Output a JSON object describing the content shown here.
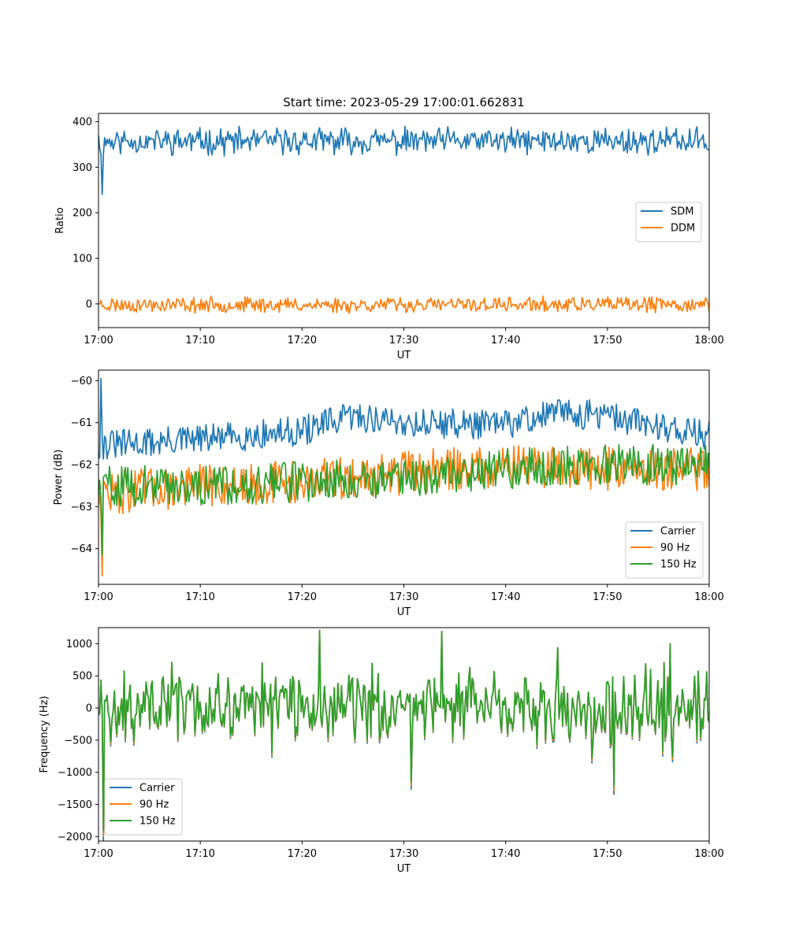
{
  "chart_data": [
    {
      "type": "line",
      "title": "Start time: 2023-05-29 17:00:01.662831",
      "xlabel": "UT",
      "ylabel": "Ratio",
      "xlim": [
        "17:00",
        "18:00"
      ],
      "ylim": [
        -52,
        418
      ],
      "xticks": [
        "17:00",
        "17:10",
        "17:20",
        "17:30",
        "17:40",
        "17:50",
        "18:00"
      ],
      "yticks": [
        400,
        300,
        200,
        100,
        0
      ],
      "legend": "center-right",
      "grid": false,
      "series": [
        {
          "name": "SDM",
          "color": "#1f77b4",
          "kind": "noise",
          "start": 370,
          "dip": {
            "x": "17:00:20",
            "y": 240
          },
          "center": 357,
          "amplitude": 38,
          "seed": 11
        },
        {
          "name": "DDM",
          "color": "#ff7f0e",
          "kind": "noise",
          "start": 0,
          "center": -2,
          "amplitude": 22,
          "seed": 23
        }
      ]
    },
    {
      "type": "line",
      "title": "",
      "xlabel": "UT",
      "ylabel": "Power (dB)",
      "xlim": [
        "17:00",
        "18:00"
      ],
      "ylim": [
        -64.85,
        -59.75
      ],
      "xticks": [
        "17:00",
        "17:10",
        "17:20",
        "17:30",
        "17:40",
        "17:50",
        "18:00"
      ],
      "yticks": [
        -60,
        -61,
        -62,
        -63,
        -64
      ],
      "legend": "lower-right",
      "grid": false,
      "series": [
        {
          "name": "Carrier",
          "color": "#1f77b4",
          "kind": "trend",
          "trend": [
            [
              "17:00",
              -61.55
            ],
            [
              "17:10",
              -61.4
            ],
            [
              "17:20",
              -61.2
            ],
            [
              "17:25",
              -60.85
            ],
            [
              "17:30",
              -61.0
            ],
            [
              "17:40",
              -61.05
            ],
            [
              "17:45",
              -60.75
            ],
            [
              "17:50",
              -60.85
            ],
            [
              "18:00",
              -61.3
            ]
          ],
          "amplitude": 0.55,
          "seed": 31
        },
        {
          "name": "90 Hz",
          "color": "#ff7f0e",
          "kind": "trend",
          "trend": [
            [
              "17:00",
              -62.7
            ],
            [
              "17:10",
              -62.5
            ],
            [
              "17:20",
              -62.4
            ],
            [
              "17:30",
              -62.2
            ],
            [
              "17:40",
              -62.0
            ],
            [
              "17:50",
              -62.1
            ],
            [
              "18:00",
              -62.1
            ]
          ],
          "amplitude": 0.8,
          "seed": 47
        },
        {
          "name": "150 Hz",
          "color": "#2ca02c",
          "kind": "trend",
          "trend": [
            [
              "17:00",
              -62.5
            ],
            [
              "17:10",
              -62.5
            ],
            [
              "17:20",
              -62.4
            ],
            [
              "17:30",
              -62.3
            ],
            [
              "17:40",
              -62.1
            ],
            [
              "17:50",
              -62.0
            ],
            [
              "18:00",
              -62.0
            ]
          ],
          "amplitude": 0.75,
          "seed": 59
        }
      ]
    },
    {
      "type": "line",
      "title": "",
      "xlabel": "UT",
      "ylabel": "Frequency (Hz)",
      "xlim": [
        "17:00",
        "18:00"
      ],
      "ylim": [
        -2070,
        1250
      ],
      "xticks": [
        "17:00",
        "17:10",
        "17:20",
        "17:30",
        "17:40",
        "17:50",
        "18:00"
      ],
      "yticks": [
        1000,
        500,
        0,
        -500,
        -1000,
        -1500,
        -2000
      ],
      "legend": "lower-left",
      "grid": false,
      "series": [
        {
          "name": "Carrier",
          "color": "#1f77b4",
          "kind": "shared",
          "offset": -60,
          "seed": 71
        },
        {
          "name": "90 Hz",
          "color": "#ff7f0e",
          "kind": "shared",
          "offset": -30,
          "seed": 71
        },
        {
          "name": "150 Hz",
          "color": "#2ca02c",
          "kind": "shared",
          "offset": 0,
          "seed": 71
        }
      ],
      "notable_points": [
        {
          "x": "17:00:30",
          "y": -1900
        },
        {
          "x": "17:21:40",
          "y": 1210
        },
        {
          "x": "17:33:40",
          "y": 1190
        },
        {
          "x": "17:30:40",
          "y": -1150
        },
        {
          "x": "17:50:40",
          "y": -1220
        }
      ],
      "range": [
        -1000,
        1000
      ]
    }
  ]
}
